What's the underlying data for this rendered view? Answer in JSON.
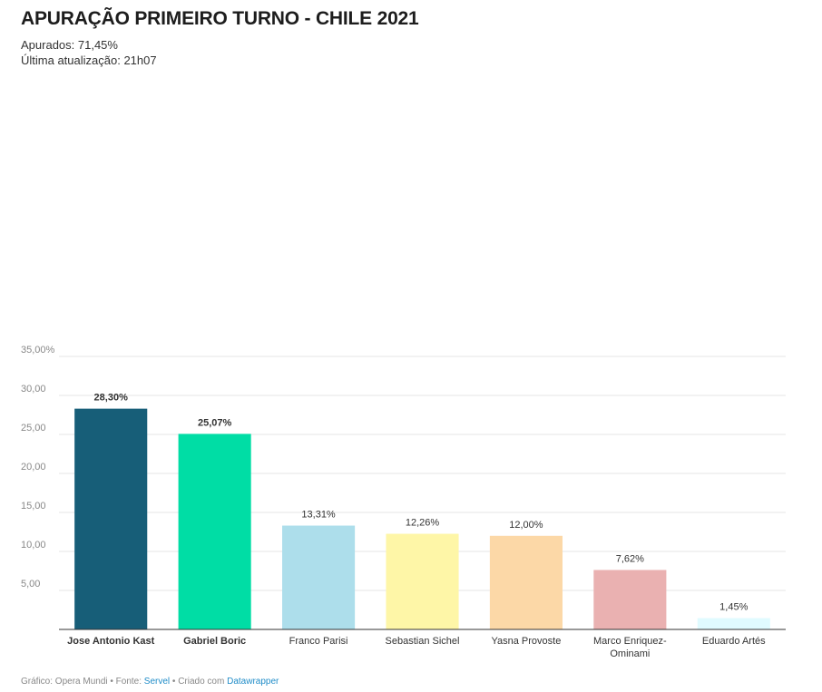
{
  "header": {
    "title": "APURAÇÃO PRIMEIRO TURNO - CHILE 2021",
    "subtitle_line1": "Apurados: 71,45%",
    "subtitle_line2": "Última atualização: 21h07"
  },
  "footer": {
    "prefix": "Gráfico: Opera Mundi • Fonte: ",
    "source_link": "Servel",
    "middle": " • Criado com ",
    "tool_link": "Datawrapper"
  },
  "chart_data": {
    "type": "bar",
    "title": "APURAÇÃO PRIMEIRO TURNO - CHILE 2021",
    "xlabel": "",
    "ylabel": "",
    "ylim": [
      0,
      35
    ],
    "grid": true,
    "yticks": [
      {
        "value": 35,
        "label": "35,00%"
      },
      {
        "value": 30,
        "label": "30,00"
      },
      {
        "value": 25,
        "label": "25,00"
      },
      {
        "value": 20,
        "label": "20,00"
      },
      {
        "value": 15,
        "label": "15,00"
      },
      {
        "value": 10,
        "label": "10,00"
      },
      {
        "value": 5,
        "label": "5,00"
      }
    ],
    "bars": [
      {
        "category": "Jose Antonio Kast",
        "category_lines": [
          "Jose Antonio Kast"
        ],
        "value": 28.3,
        "label": "28,30%",
        "color": "#175e78",
        "bold": true
      },
      {
        "category": "Gabriel Boric",
        "category_lines": [
          "Gabriel Boric"
        ],
        "value": 25.07,
        "label": "25,07%",
        "color": "#00dda5",
        "bold": true
      },
      {
        "category": "Franco Parisi",
        "category_lines": [
          "Franco Parisi"
        ],
        "value": 13.31,
        "label": "13,31%",
        "color": "#addeeb",
        "bold": false
      },
      {
        "category": "Sebastian Sichel",
        "category_lines": [
          "Sebastian Sichel"
        ],
        "value": 12.26,
        "label": "12,26%",
        "color": "#fef6a7",
        "bold": false
      },
      {
        "category": "Yasna Provoste",
        "category_lines": [
          "Yasna Provoste"
        ],
        "value": 12.0,
        "label": "12,00%",
        "color": "#fcd8a7",
        "bold": false
      },
      {
        "category": "Marco Enriquez-Ominami",
        "category_lines": [
          "Marco Enriquez-",
          "Ominami"
        ],
        "value": 7.62,
        "label": "7,62%",
        "color": "#eab1b1",
        "bold": false
      },
      {
        "category": "Eduardo Artés",
        "category_lines": [
          "Eduardo Artés"
        ],
        "value": 1.45,
        "label": "1,45%",
        "color": "#e0fbff",
        "bold": false
      }
    ]
  }
}
